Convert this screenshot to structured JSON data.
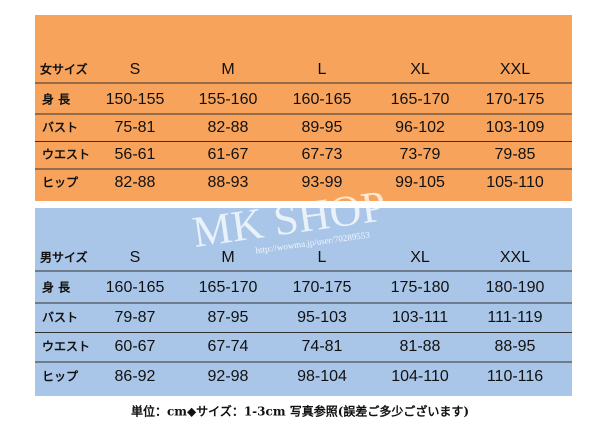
{
  "tables": [
    {
      "header": [
        "女サイズ",
        "S",
        "M",
        "L",
        "XL",
        "XXL"
      ],
      "rows": [
        [
          "身 長",
          "150-155",
          "155-160",
          "160-165",
          "165-170",
          "170-175"
        ],
        [
          "バスト",
          "75-81",
          "82-88",
          "89-95",
          "96-102",
          "103-109"
        ],
        [
          "ウエスト",
          "56-61",
          "61-67",
          "67-73",
          "73-79",
          "79-85"
        ],
        [
          "ヒップ",
          "82-88",
          "88-93",
          "93-99",
          "99-105",
          "105-110"
        ]
      ]
    },
    {
      "header": [
        "男サイズ",
        "S",
        "M",
        "L",
        "XL",
        "XXL"
      ],
      "rows": [
        [
          "身 長",
          "160-165",
          "165-170",
          "170-175",
          "175-180",
          "180-190"
        ],
        [
          "バスト",
          "79-87",
          "87-95",
          "95-103",
          "103-111",
          "111-119"
        ],
        [
          "ウエスト",
          "60-67",
          "67-74",
          "74-81",
          "81-88",
          "88-95"
        ],
        [
          "ヒップ",
          "86-92",
          "92-98",
          "98-104",
          "104-110",
          "110-116"
        ]
      ]
    }
  ],
  "watermark": {
    "title": "MK SHOP",
    "url": "http://wowma.jp/user/70289553"
  },
  "footer": "単位：cm◆サイズ：1-3cm 写真参照(誤差ご多少ございます)"
}
